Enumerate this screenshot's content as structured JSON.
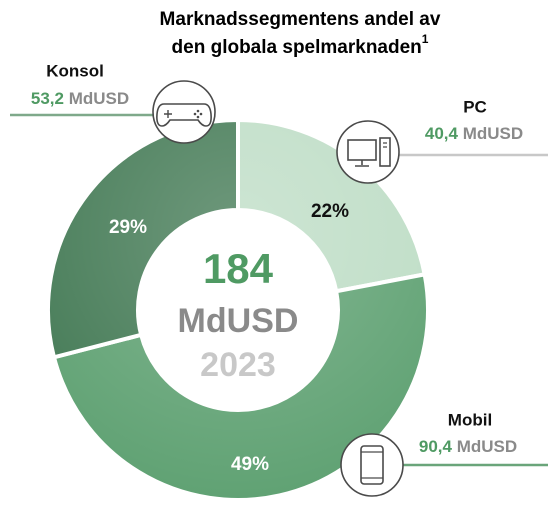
{
  "chart_data": {
    "type": "donut",
    "title_lines": [
      "Marknadssegmentens andel av",
      "den globala spelmarknaden"
    ],
    "title_footnote": "1",
    "categories": [
      "PC",
      "Mobil",
      "Konsol"
    ],
    "values": [
      22,
      49,
      29
    ],
    "value_labels": [
      "22%",
      "49%",
      "29%"
    ],
    "amounts": [
      40.4,
      90.4,
      53.2
    ],
    "amount_labels": [
      "40,4",
      "90,4",
      "53,2"
    ],
    "amount_unit": "MdUSD",
    "colors": [
      "#bcdcc4",
      "#5b9f6f",
      "#3e7650"
    ],
    "total": 184,
    "total_unit": "MdUSD",
    "year": "2023"
  }
}
